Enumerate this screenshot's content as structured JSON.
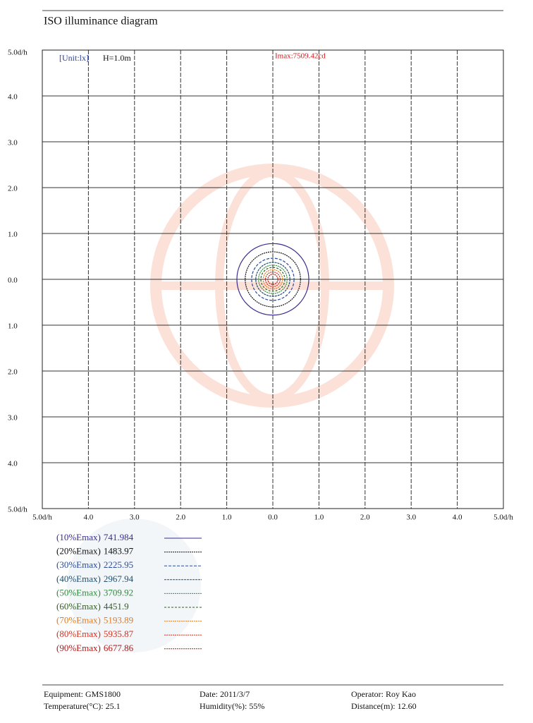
{
  "header": {
    "title": "ISO illuminance diagram"
  },
  "chart_data": {
    "type": "contour",
    "unit_label": "[Unit:lx]",
    "height_label": "H=1.0m",
    "imax_label": "Imax:7509.42cd",
    "xlim": [
      -5,
      5
    ],
    "ylim": [
      -5,
      5
    ],
    "xticks": [
      {
        "value": -5,
        "label": "5.0d/h"
      },
      {
        "value": -4,
        "label": "4.0"
      },
      {
        "value": -3,
        "label": "3.0"
      },
      {
        "value": -2,
        "label": "2.0"
      },
      {
        "value": -1,
        "label": "1.0"
      },
      {
        "value": 0,
        "label": "0.0"
      },
      {
        "value": 1,
        "label": "1.0"
      },
      {
        "value": 2,
        "label": "2.0"
      },
      {
        "value": 3,
        "label": "3.0"
      },
      {
        "value": 4,
        "label": "4.0"
      },
      {
        "value": 5,
        "label": "5.0d/h"
      }
    ],
    "yticks": [
      {
        "value": 5,
        "label": "5.0d/h"
      },
      {
        "value": 4,
        "label": "4.0"
      },
      {
        "value": 3,
        "label": "3.0"
      },
      {
        "value": 2,
        "label": "2.0"
      },
      {
        "value": 1,
        "label": "1.0"
      },
      {
        "value": 0,
        "label": "0.0"
      },
      {
        "value": -1,
        "label": "1.0"
      },
      {
        "value": -2,
        "label": "2.0"
      },
      {
        "value": -3,
        "label": "3.0"
      },
      {
        "value": -4,
        "label": "4.0"
      },
      {
        "value": -5,
        "label": "5.0d/h"
      }
    ],
    "grid": true,
    "series": [
      {
        "name": "(10%Emax)",
        "color": "#3b2d8f",
        "level": 741.984,
        "radius": 0.78
      },
      {
        "name": "(20%Emax)",
        "color": "#111111",
        "level": 1483.97,
        "radius": 0.6
      },
      {
        "name": "(30%Emax)",
        "color": "#2b4b9b",
        "level": 2225.95,
        "radius": 0.46
      },
      {
        "name": "(40%Emax)",
        "color": "#1f4e6e",
        "level": 2967.94,
        "radius": 0.37
      },
      {
        "name": "(50%Emax)",
        "color": "#2e8b3a",
        "level": 3709.92,
        "radius": 0.31
      },
      {
        "name": "(60%Emax)",
        "color": "#2f5f1f",
        "level": 4451.9,
        "radius": 0.26
      },
      {
        "name": "(70%Emax)",
        "color": "#e07b20",
        "level": 5193.89,
        "radius": 0.21
      },
      {
        "name": "(80%Emax)",
        "color": "#d03020",
        "level": 5935.87,
        "radius": 0.16
      },
      {
        "name": "(90%Emax)",
        "color": "#b01818",
        "level": 6677.86,
        "radius": 0.11
      }
    ]
  },
  "footer": {
    "rows": [
      [
        "Equipment: GMS1800",
        "Date: 2011/3/7",
        "Operator: Roy Kao"
      ],
      [
        "Temperature(°C): 25.1",
        "Humidity(%): 55%",
        "Distance(m): 12.60"
      ]
    ]
  }
}
